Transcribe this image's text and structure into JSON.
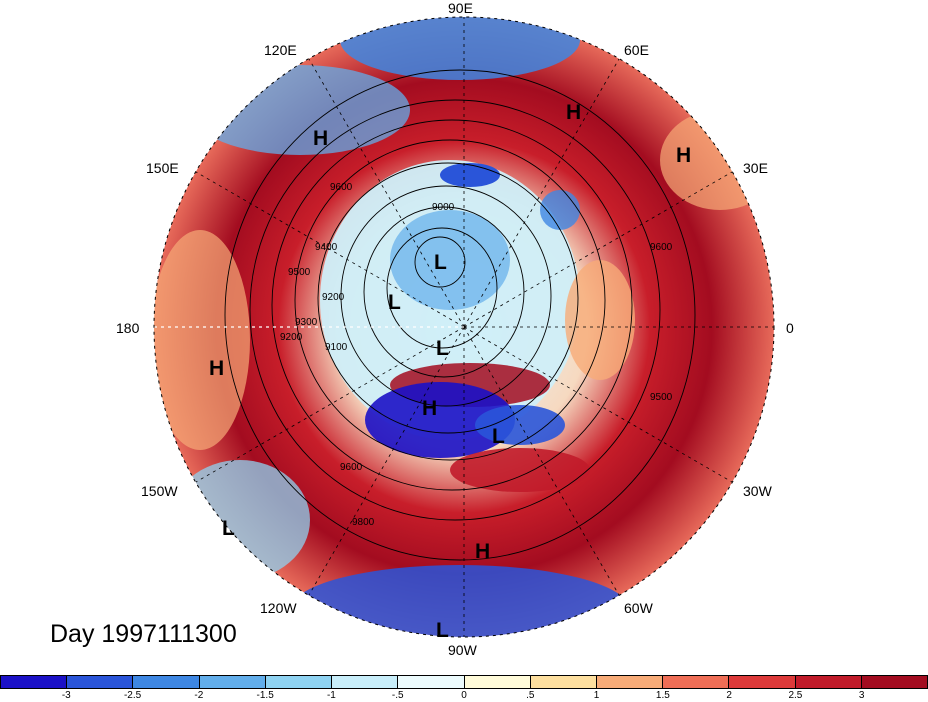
{
  "title": "Day 1997111300",
  "longitude_labels": [
    "90E",
    "60E",
    "30E",
    "0",
    "30W",
    "60W",
    "90W",
    "120W",
    "150W",
    "180",
    "150E",
    "120E"
  ],
  "pressure_centers": [
    "L",
    "L",
    "L",
    "L",
    "H",
    "H",
    "H",
    "H",
    "H",
    "H",
    "L",
    "L"
  ],
  "contour_labels": [
    "9600",
    "9400",
    "9200",
    "9100",
    "9000",
    "9200",
    "9300",
    "9500",
    "9600",
    "9500",
    "9600",
    "9800"
  ],
  "colorbar": {
    "colors": [
      "#1b11c7",
      "#2a55d9",
      "#3e87e3",
      "#62aeeb",
      "#8fd3f2",
      "#c8eefa",
      "#ecfbfd",
      "#fffbd9",
      "#fddf9f",
      "#f7ab78",
      "#ef6e56",
      "#dd3a3a",
      "#c11b2a",
      "#a30c20"
    ],
    "ticks": [
      "-3",
      "-2.5",
      "-2",
      "-1.5",
      "-1",
      "-.5",
      "0",
      ".5",
      "1",
      "1.5",
      "2",
      "2.5",
      "3"
    ]
  }
}
